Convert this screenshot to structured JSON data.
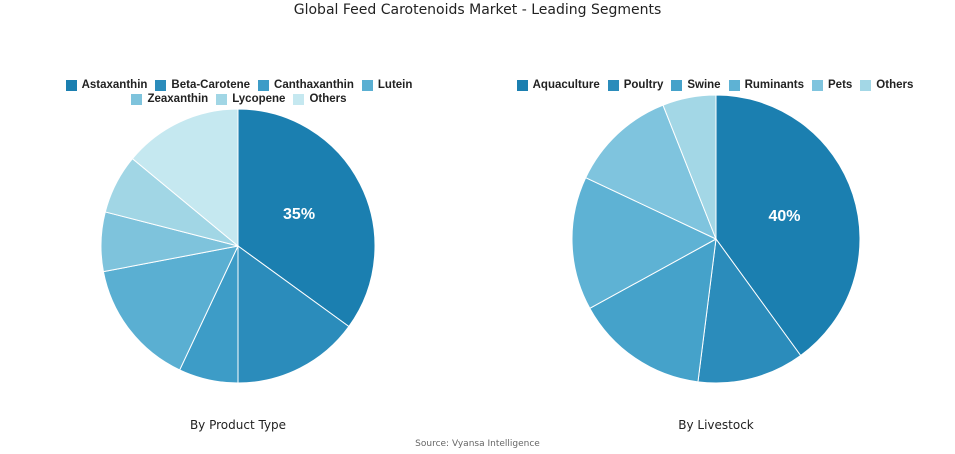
{
  "title": "Global Feed Carotenoids Market - Leading Segments",
  "source": "Source: Vyansa Intelligence",
  "chart_data": [
    {
      "type": "pie",
      "title": "By Product Type",
      "categories": [
        "Astaxanthin",
        "Beta-Carotene",
        "Canthaxanthin",
        "Lutein",
        "Zeaxanthin",
        "Lycopene",
        "Others"
      ],
      "values": [
        35,
        15,
        7,
        15,
        7,
        7,
        14
      ],
      "colors": [
        "#1b7fb0",
        "#2b8cbb",
        "#3d9cc7",
        "#5aafd2",
        "#7ec3dc",
        "#a1d6e5",
        "#c5e8f0"
      ],
      "labels": [
        {
          "category": "Astaxanthin",
          "text": "35%"
        }
      ],
      "legend": "top",
      "caption": "By Product Type"
    },
    {
      "type": "pie",
      "title": "By Livestock",
      "categories": [
        "Aquaculture",
        "Poultry",
        "Swine",
        "Ruminants",
        "Pets",
        "Others"
      ],
      "values": [
        40,
        12,
        15,
        15,
        12,
        6
      ],
      "colors": [
        "#1b7fb0",
        "#2b8cbb",
        "#45a2ca",
        "#5eb2d4",
        "#7fc4de",
        "#a3d7e6"
      ],
      "labels": [
        {
          "category": "Aquaculture",
          "text": "40%"
        }
      ],
      "legend": "top",
      "caption": "By Livestock"
    }
  ]
}
